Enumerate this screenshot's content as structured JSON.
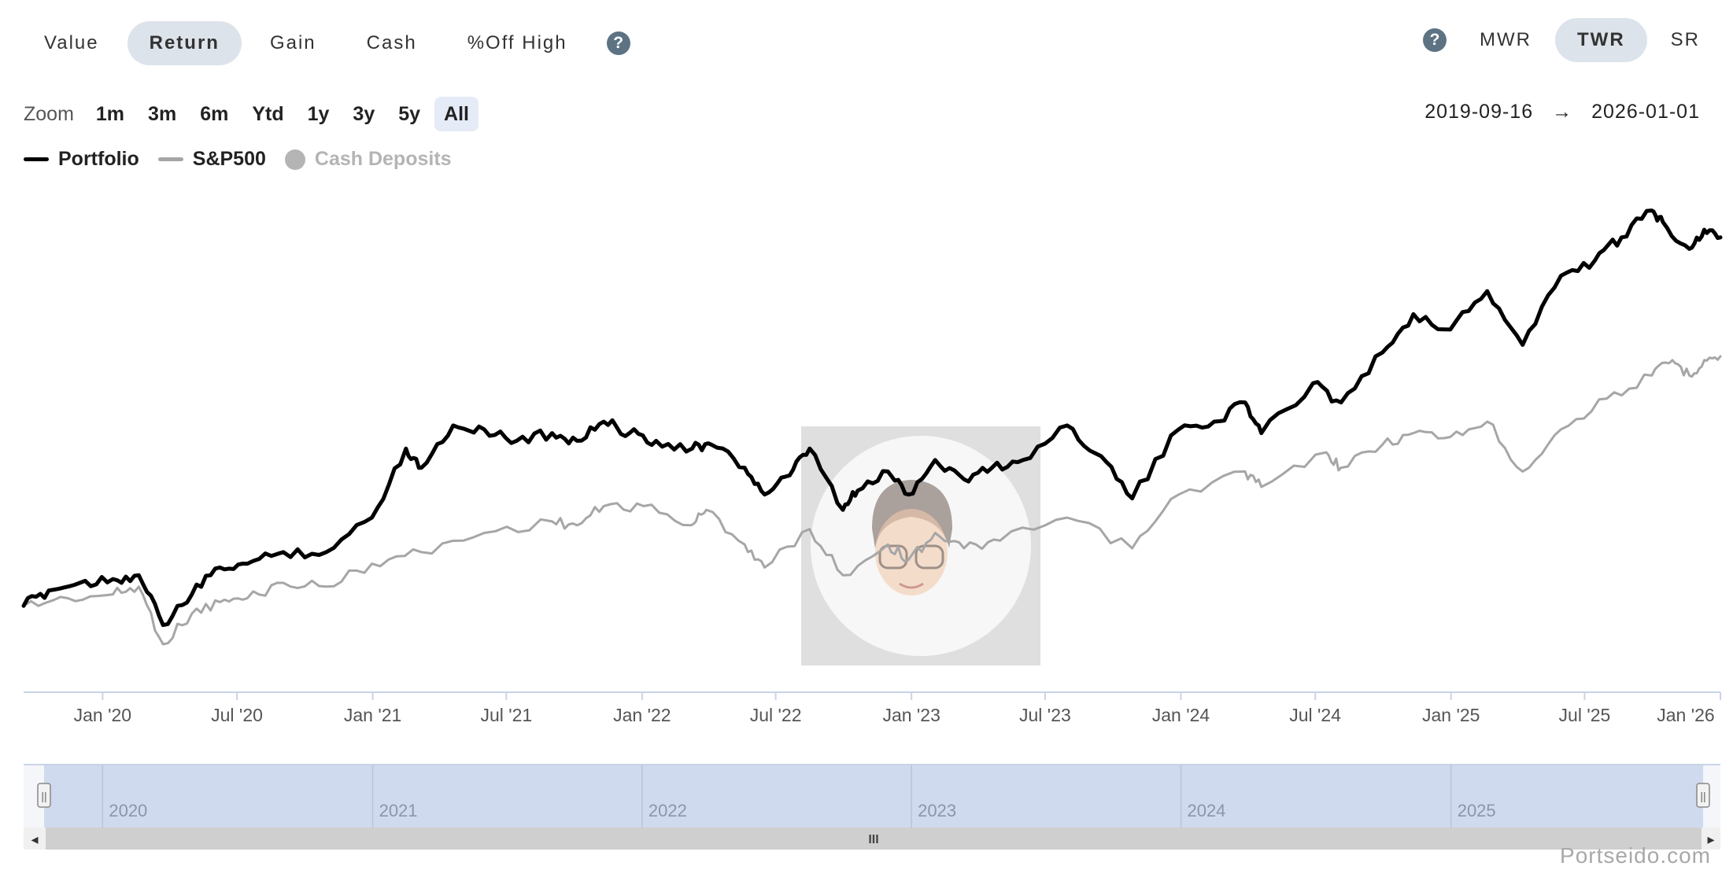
{
  "mode_tabs": [
    {
      "label": "Value",
      "active": false
    },
    {
      "label": "Return",
      "active": true
    },
    {
      "label": "Gain",
      "active": false
    },
    {
      "label": "Cash",
      "active": false
    },
    {
      "label": "%Off High",
      "active": false
    }
  ],
  "help_icon": "?",
  "method_tabs": [
    {
      "label": "MWR",
      "active": false
    },
    {
      "label": "TWR",
      "active": true
    },
    {
      "label": "SR",
      "active": false
    }
  ],
  "zoom": {
    "label": "Zoom",
    "options": [
      "1m",
      "3m",
      "6m",
      "Ytd",
      "1y",
      "3y",
      "5y",
      "All"
    ],
    "selected": "All"
  },
  "date_range": {
    "from": "2019-09-16",
    "arrow": "→",
    "to": "2026-01-01"
  },
  "legend": [
    {
      "name": "Portfolio",
      "color": "#000000",
      "enabled": true
    },
    {
      "name": "S&P500",
      "color": "#a6a6a6",
      "enabled": true
    },
    {
      "name": "Cash Deposits",
      "color": "#b4b4b4",
      "enabled": false
    }
  ],
  "chart_data": {
    "type": "line",
    "x_ticks": [
      "Jan '20",
      "Jul '20",
      "Jan '21",
      "Jul '21",
      "Jan '22",
      "Jul '22",
      "Jan '23",
      "Jul '23",
      "Jan '24",
      "Jul '24",
      "Jan '25",
      "Jul '25",
      "Jan '26"
    ],
    "x_range": [
      "2019-09-16",
      "2026-01-01"
    ],
    "y_axis_labels_visible": false,
    "series": [
      {
        "name": "Portfolio",
        "color": "#000000",
        "points": [
          [
            "2019-09-16",
            0.02
          ],
          [
            "2019-10-20",
            0.06
          ],
          [
            "2019-12-01",
            0.08
          ],
          [
            "2020-01-15",
            0.09
          ],
          [
            "2020-02-19",
            0.1
          ],
          [
            "2020-03-23",
            -0.03
          ],
          [
            "2020-05-01",
            0.05
          ],
          [
            "2020-06-08",
            0.12
          ],
          [
            "2020-07-15",
            0.13
          ],
          [
            "2020-09-02",
            0.16
          ],
          [
            "2020-10-30",
            0.16
          ],
          [
            "2020-12-31",
            0.25
          ],
          [
            "2021-02-15",
            0.43
          ],
          [
            "2021-03-08",
            0.38
          ],
          [
            "2021-04-20",
            0.49
          ],
          [
            "2021-06-01",
            0.48
          ],
          [
            "2021-07-15",
            0.45
          ],
          [
            "2021-09-01",
            0.47
          ],
          [
            "2021-10-05",
            0.45
          ],
          [
            "2021-11-10",
            0.5
          ],
          [
            "2021-12-15",
            0.47
          ],
          [
            "2022-01-20",
            0.45
          ],
          [
            "2022-03-10",
            0.43
          ],
          [
            "2022-04-05",
            0.44
          ],
          [
            "2022-05-20",
            0.38
          ],
          [
            "2022-06-16",
            0.31
          ],
          [
            "2022-07-20",
            0.36
          ],
          [
            "2022-08-16",
            0.43
          ],
          [
            "2022-09-30",
            0.27
          ],
          [
            "2022-10-20",
            0.32
          ],
          [
            "2022-11-30",
            0.37
          ],
          [
            "2022-12-28",
            0.31
          ],
          [
            "2023-02-02",
            0.4
          ],
          [
            "2023-03-13",
            0.35
          ],
          [
            "2023-04-20",
            0.38
          ],
          [
            "2023-06-01",
            0.4
          ],
          [
            "2023-07-31",
            0.49
          ],
          [
            "2023-09-15",
            0.41
          ],
          [
            "2023-10-27",
            0.3
          ],
          [
            "2023-12-29",
            0.48
          ],
          [
            "2024-02-15",
            0.5
          ],
          [
            "2024-03-28",
            0.55
          ],
          [
            "2024-04-19",
            0.47
          ],
          [
            "2024-06-28",
            0.6
          ],
          [
            "2024-08-05",
            0.55
          ],
          [
            "2024-09-30",
            0.68
          ],
          [
            "2024-11-11",
            0.78
          ],
          [
            "2024-12-31",
            0.74
          ],
          [
            "2025-02-19",
            0.84
          ],
          [
            "2025-04-08",
            0.7
          ],
          [
            "2025-05-30",
            0.88
          ],
          [
            "2025-07-15",
            0.92
          ],
          [
            "2025-08-20",
            0.98
          ],
          [
            "2025-09-30",
            1.05
          ],
          [
            "2025-10-15",
            1.02
          ],
          [
            "2025-11-20",
            0.95
          ],
          [
            "2025-12-10",
            1.0
          ],
          [
            "2026-01-01",
            0.98
          ]
        ]
      },
      {
        "name": "S&P500",
        "color": "#a6a6a6",
        "points": [
          [
            "2019-09-16",
            0.02
          ],
          [
            "2019-11-15",
            0.04
          ],
          [
            "2020-01-15",
            0.05
          ],
          [
            "2020-02-19",
            0.07
          ],
          [
            "2020-03-23",
            -0.08
          ],
          [
            "2020-05-01",
            0.0
          ],
          [
            "2020-06-08",
            0.03
          ],
          [
            "2020-07-15",
            0.04
          ],
          [
            "2020-09-02",
            0.08
          ],
          [
            "2020-10-30",
            0.07
          ],
          [
            "2020-12-31",
            0.13
          ],
          [
            "2021-03-08",
            0.16
          ],
          [
            "2021-06-01",
            0.21
          ],
          [
            "2021-09-01",
            0.24
          ],
          [
            "2021-10-05",
            0.23
          ],
          [
            "2021-11-10",
            0.28
          ],
          [
            "2022-01-03",
            0.28
          ],
          [
            "2022-03-08",
            0.23
          ],
          [
            "2022-03-29",
            0.27
          ],
          [
            "2022-05-20",
            0.18
          ],
          [
            "2022-06-16",
            0.12
          ],
          [
            "2022-08-16",
            0.22
          ],
          [
            "2022-09-30",
            0.1
          ],
          [
            "2022-11-30",
            0.18
          ],
          [
            "2022-12-28",
            0.14
          ],
          [
            "2023-02-02",
            0.21
          ],
          [
            "2023-03-13",
            0.17
          ],
          [
            "2023-05-01",
            0.19
          ],
          [
            "2023-07-31",
            0.25
          ],
          [
            "2023-10-27",
            0.17
          ],
          [
            "2023-12-29",
            0.31
          ],
          [
            "2024-03-28",
            0.37
          ],
          [
            "2024-04-19",
            0.33
          ],
          [
            "2024-07-16",
            0.42
          ],
          [
            "2024-08-05",
            0.38
          ],
          [
            "2024-09-30",
            0.44
          ],
          [
            "2024-11-11",
            0.47
          ],
          [
            "2024-12-31",
            0.46
          ],
          [
            "2025-02-19",
            0.5
          ],
          [
            "2025-04-08",
            0.37
          ],
          [
            "2025-05-30",
            0.48
          ],
          [
            "2025-07-31",
            0.56
          ],
          [
            "2025-09-30",
            0.62
          ],
          [
            "2025-10-28",
            0.66
          ],
          [
            "2025-11-20",
            0.62
          ],
          [
            "2025-12-10",
            0.66
          ],
          [
            "2026-01-01",
            0.67
          ]
        ]
      }
    ],
    "navigator": {
      "year_labels": [
        "2020",
        "2021",
        "2022",
        "2023",
        "2024",
        "2025"
      ],
      "handle_icon": "||",
      "scroll_left_icon": "◂",
      "scroll_right_icon": "▸",
      "scroll_thumb_icon": "III"
    },
    "grid": false,
    "legend_position": "top-left"
  },
  "brand": "Portseido.com",
  "watermark_icon": "avatar-memoji-icon"
}
